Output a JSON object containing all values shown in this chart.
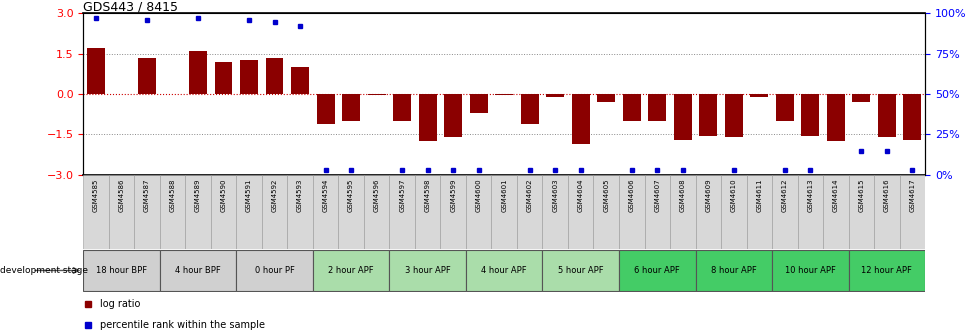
{
  "title": "GDS443 / 8415",
  "samples": [
    "GSM4585",
    "GSM4586",
    "GSM4587",
    "GSM4588",
    "GSM4589",
    "GSM4590",
    "GSM4591",
    "GSM4592",
    "GSM4593",
    "GSM4594",
    "GSM4595",
    "GSM4596",
    "GSM4597",
    "GSM4598",
    "GSM4599",
    "GSM4600",
    "GSM4601",
    "GSM4602",
    "GSM4603",
    "GSM4604",
    "GSM4605",
    "GSM4606",
    "GSM4607",
    "GSM4608",
    "GSM4609",
    "GSM4610",
    "GSM4611",
    "GSM4612",
    "GSM4613",
    "GSM4614",
    "GSM4615",
    "GSM4616",
    "GSM4617"
  ],
  "log_ratio": [
    1.7,
    0.0,
    1.35,
    0.0,
    1.6,
    1.2,
    1.25,
    1.35,
    1.0,
    -1.1,
    -1.0,
    -0.05,
    -1.0,
    -1.75,
    -1.6,
    -0.7,
    -0.05,
    -1.1,
    -0.1,
    -1.85,
    -0.3,
    -1.0,
    -1.0,
    -1.7,
    -1.55,
    -1.6,
    -0.1,
    -1.0,
    -1.55,
    -1.75,
    -0.3,
    -1.6,
    -1.7
  ],
  "percentile": [
    97,
    0,
    96,
    0,
    97,
    0,
    96,
    95,
    92,
    3,
    3,
    0,
    3,
    3,
    3,
    3,
    0,
    3,
    3,
    3,
    0,
    3,
    3,
    3,
    0,
    3,
    0,
    3,
    3,
    0,
    15,
    15,
    3
  ],
  "stages": [
    {
      "label": "18 hour BPF",
      "start": 0,
      "end": 3,
      "color": "#d0d0d0"
    },
    {
      "label": "4 hour BPF",
      "start": 3,
      "end": 6,
      "color": "#d0d0d0"
    },
    {
      "label": "0 hour PF",
      "start": 6,
      "end": 9,
      "color": "#d0d0d0"
    },
    {
      "label": "2 hour APF",
      "start": 9,
      "end": 12,
      "color": "#aaddaa"
    },
    {
      "label": "3 hour APF",
      "start": 12,
      "end": 15,
      "color": "#aaddaa"
    },
    {
      "label": "4 hour APF",
      "start": 15,
      "end": 18,
      "color": "#aaddaa"
    },
    {
      "label": "5 hour APF",
      "start": 18,
      "end": 21,
      "color": "#aaddaa"
    },
    {
      "label": "6 hour APF",
      "start": 21,
      "end": 24,
      "color": "#44cc66"
    },
    {
      "label": "8 hour APF",
      "start": 24,
      "end": 27,
      "color": "#44cc66"
    },
    {
      "label": "10 hour APF",
      "start": 27,
      "end": 30,
      "color": "#44cc66"
    },
    {
      "label": "12 hour APF",
      "start": 30,
      "end": 33,
      "color": "#44cc66"
    }
  ],
  "bar_color": "#8b0000",
  "dot_color": "#0000cc",
  "ylim": [
    -3,
    3
  ],
  "yticks_left": [
    -3,
    -1.5,
    0,
    1.5,
    3
  ],
  "yticks_right": [
    0,
    25,
    50,
    75,
    100
  ],
  "background_color": "#ffffff"
}
